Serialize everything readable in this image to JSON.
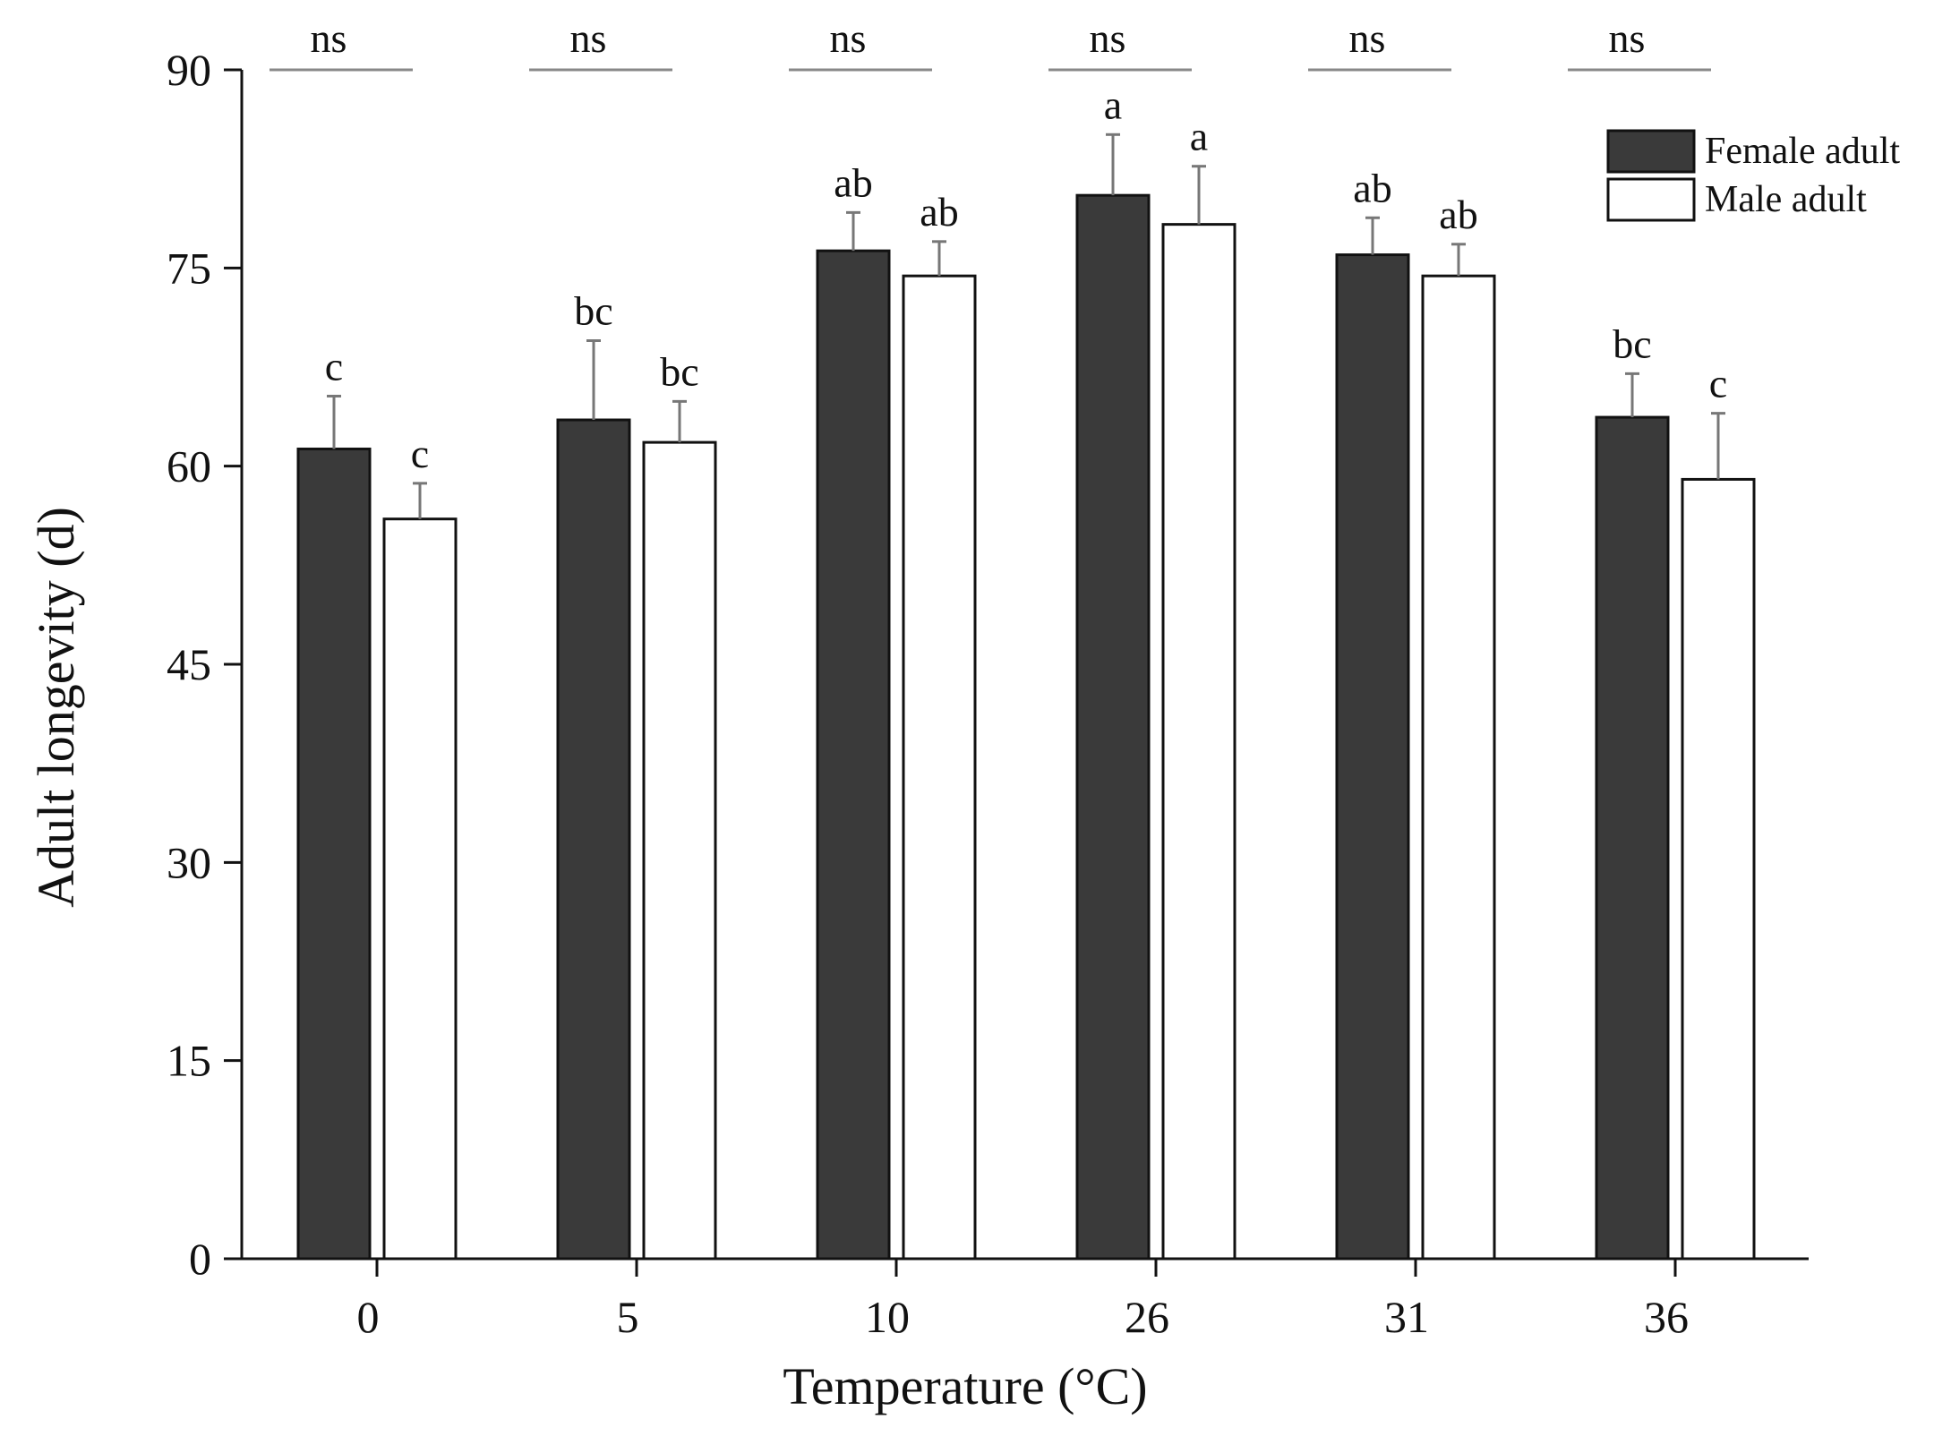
{
  "chart_data": {
    "type": "bar",
    "title": "",
    "xlabel": "Temperature (°C)",
    "ylabel": "Adult longevity (d)",
    "ylim": [
      0,
      90
    ],
    "yticks": [
      0,
      15,
      30,
      45,
      60,
      75,
      90
    ],
    "categories": [
      "0",
      "5",
      "10",
      "26",
      "31",
      "36"
    ],
    "series": [
      {
        "name": "Female adult",
        "color": "#3a3a3a",
        "values": [
          61.3,
          63.5,
          76.3,
          80.5,
          76.0,
          63.7
        ],
        "errors": [
          4.0,
          6.0,
          2.9,
          4.6,
          2.8,
          3.3
        ],
        "letters": [
          "c",
          "bc",
          "ab",
          "a",
          "ab",
          "bc"
        ]
      },
      {
        "name": "Male adult",
        "color": "#ffffff",
        "values": [
          56.0,
          61.8,
          74.4,
          78.3,
          74.4,
          59.0
        ],
        "errors": [
          2.7,
          3.1,
          2.6,
          4.4,
          2.4,
          5.0
        ],
        "letters": [
          "c",
          "bc",
          "ab",
          "a",
          "ab",
          "c"
        ]
      }
    ],
    "pair_annotations": [
      "ns",
      "ns",
      "ns",
      "ns",
      "ns",
      "ns"
    ],
    "legend_position": "top-right",
    "grid": false
  }
}
